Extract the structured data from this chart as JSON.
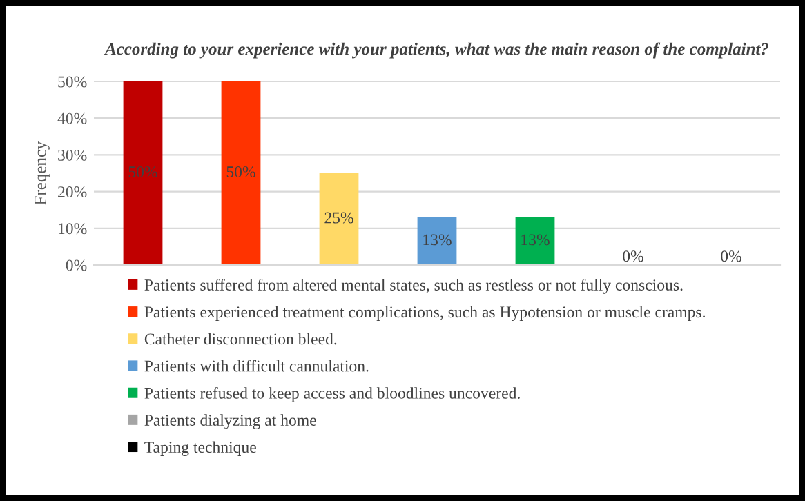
{
  "chart_data": {
    "type": "bar",
    "title": "According to your experience with your patients, what was the main reason of the complaint?",
    "ylabel": "Freqency",
    "categories": [
      null,
      null,
      null,
      null,
      null,
      null,
      null
    ],
    "series": [
      {
        "name": "Patients suffered from altered mental states, such as restless or not fully conscious.",
        "color": "#c00000",
        "values": [
          50,
          null,
          null,
          null,
          null,
          null,
          null
        ],
        "value_labels": [
          "50%",
          null,
          null,
          null,
          null,
          null,
          null
        ]
      },
      {
        "name": "Patients experienced treatment complications, such as Hypotension or muscle cramps.",
        "color": "#ff3300",
        "values": [
          null,
          50,
          null,
          null,
          null,
          null,
          null
        ],
        "value_labels": [
          null,
          "50%",
          null,
          null,
          null,
          null,
          null
        ]
      },
      {
        "name": "Catheter disconnection bleed.",
        "color": "#ffd966",
        "values": [
          null,
          null,
          25,
          null,
          null,
          null,
          null
        ],
        "value_labels": [
          null,
          null,
          "25%",
          null,
          null,
          null,
          null
        ]
      },
      {
        "name": "Patients with difficult cannulation.",
        "color": "#5b9bd5",
        "values": [
          null,
          null,
          null,
          13,
          null,
          null,
          null
        ],
        "value_labels": [
          null,
          null,
          null,
          "13%",
          null,
          null,
          null
        ]
      },
      {
        "name": "Patients refused to keep access and bloodlines uncovered.",
        "color": "#00b050",
        "values": [
          null,
          null,
          null,
          null,
          13,
          null,
          null
        ],
        "value_labels": [
          null,
          null,
          null,
          null,
          "13%",
          null,
          null
        ]
      },
      {
        "name": "Patients dialyzing at home",
        "color": "#a5a5a5",
        "values": [
          null,
          null,
          null,
          null,
          null,
          0,
          null
        ],
        "value_labels": [
          null,
          null,
          null,
          null,
          null,
          "0%",
          null
        ]
      },
      {
        "name": "Taping technique",
        "color": "#000000",
        "values": [
          null,
          null,
          null,
          null,
          null,
          null,
          0
        ],
        "value_labels": [
          null,
          null,
          null,
          null,
          null,
          null,
          "0%"
        ]
      }
    ],
    "ylim": [
      0,
      50
    ],
    "yticks": [
      {
        "value": 0,
        "label": "0%"
      },
      {
        "value": 10,
        "label": "10%"
      },
      {
        "value": 20,
        "label": "20%"
      },
      {
        "value": 30,
        "label": "30%"
      },
      {
        "value": 40,
        "label": "40%"
      },
      {
        "value": 50,
        "label": "50%"
      }
    ],
    "grid": "y",
    "legend": "bottom",
    "tick_labels": "y"
  }
}
